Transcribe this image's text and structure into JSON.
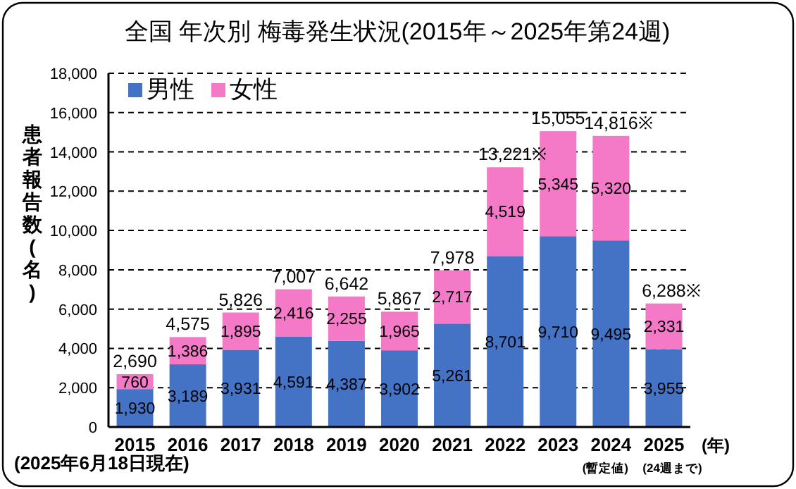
{
  "chart_data": {
    "type": "bar",
    "stacked": true,
    "title": "全国  年次別 梅毒発生状況(2015年～2025年第24週)",
    "ylabel": "患者報告数(名)",
    "xlabel": "(年)",
    "categories": [
      "2015",
      "2016",
      "2017",
      "2018",
      "2019",
      "2020",
      "2021",
      "2022",
      "2023",
      "2024",
      "2025"
    ],
    "series": [
      {
        "name": "男性",
        "color": "#4472c4",
        "values": [
          1930,
          3189,
          3931,
          4591,
          4387,
          3902,
          5261,
          8701,
          9710,
          9495,
          3955
        ],
        "value_labels": [
          "1,930",
          "3,189",
          "3,931",
          "4,591",
          "4,387",
          "3,902",
          "5,261",
          "8,701",
          "9,710",
          "9,495",
          "3,955"
        ]
      },
      {
        "name": "女性",
        "color": "#f47ac8",
        "values": [
          760,
          1386,
          1895,
          2416,
          2255,
          1965,
          2717,
          4519,
          5345,
          5320,
          2331
        ],
        "value_labels": [
          "760",
          "1,386",
          "1,895",
          "2,416",
          "2,255",
          "1,965",
          "2,717",
          "4,519",
          "5,345",
          "5,320",
          "2,331"
        ]
      }
    ],
    "totals": [
      "2,690",
      "4,575",
      "5,826",
      "7,007",
      "6,642",
      "5,867",
      "7,978",
      "13,221※",
      "15,055",
      "14,816※",
      null
    ],
    "ylim": [
      0,
      18000
    ],
    "yticks": [
      {
        "value": 0,
        "label": "0"
      },
      {
        "value": 2000,
        "label": "2,000"
      },
      {
        "value": 4000,
        "label": "4,000"
      },
      {
        "value": 6000,
        "label": "6,000"
      },
      {
        "value": 8000,
        "label": "8,000"
      },
      {
        "value": 10000,
        "label": "10,000"
      },
      {
        "value": 12000,
        "label": "12,000"
      },
      {
        "value": 14000,
        "label": "14,000"
      },
      {
        "value": 16000,
        "label": "16,000"
      },
      {
        "value": 18000,
        "label": "18,000"
      }
    ],
    "grid": "y",
    "legend": "top left",
    "annotations": [
      "(2025年6月18日現在)",
      "(暫定値)",
      "(24週まで)",
      {
        "text": "6,288※",
        "x": "2025",
        "y": 6288
      }
    ]
  }
}
